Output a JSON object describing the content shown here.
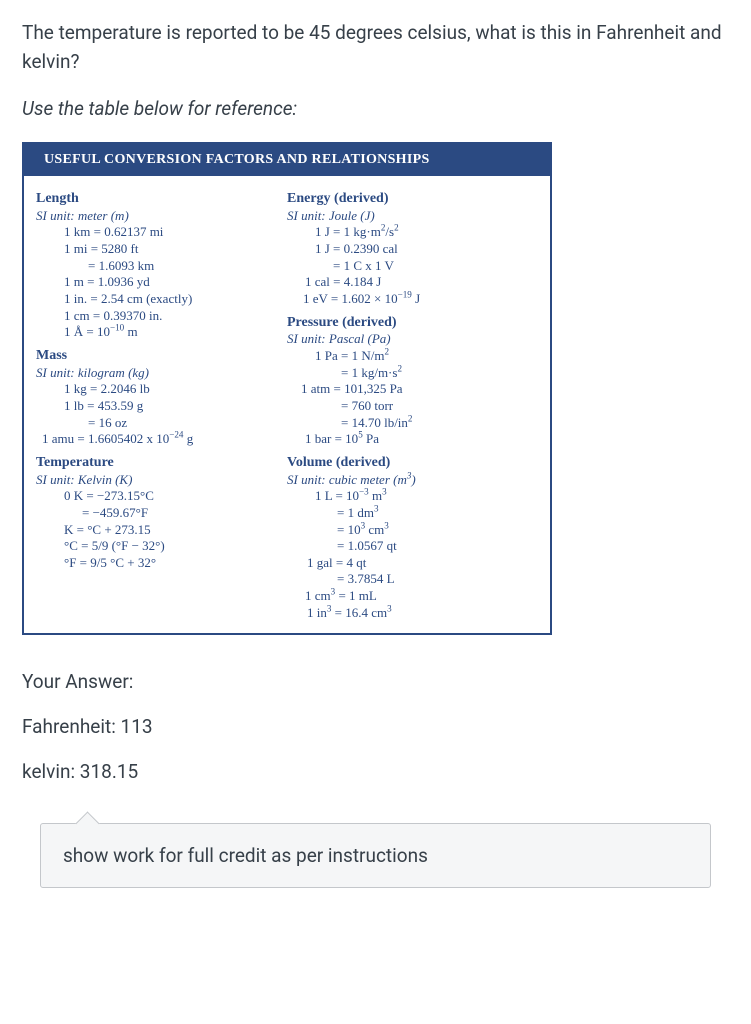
{
  "question": "The temperature is reported to be 45 degrees celsius, what is this in Fahrenheit and kelvin?",
  "prompt": "Use the table below for reference:",
  "table": {
    "header": "USEFUL CONVERSION FACTORS AND RELATIONSHIPS",
    "border_color": "#2b4a82",
    "header_bg": "#2b4a82",
    "header_fg": "#ffffff",
    "text_color": "#2b4a82",
    "left": {
      "length": {
        "title": "Length",
        "si": "SI unit: meter (m)",
        "lines": [
          "1 km = 0.62137 mi",
          "1 mi = 5280 ft",
          "= 1.6093 km",
          "1 m = 1.0936 yd",
          "1 in. = 2.54 cm (exactly)",
          "1 cm = 0.39370 in."
        ],
        "angstrom_html": "1 Å = 10<sup>−10</sup> m"
      },
      "mass": {
        "title": "Mass",
        "si": "SI unit: kilogram (kg)",
        "lines": [
          "1 kg = 2.2046 lb",
          "1 lb = 453.59 g",
          "= 16 oz"
        ],
        "amu_html": "1 amu = 1.6605402 x 10<sup>−24</sup> g"
      },
      "temperature": {
        "title": "Temperature",
        "si": "SI unit: Kelvin (K)",
        "lines": [
          "0 K = −273.15°C",
          "= −459.67°F",
          "K = °C + 273.15",
          "°C = 5/9 (°F − 32°)",
          "°F = 9/5 °C + 32°"
        ]
      }
    },
    "right": {
      "energy": {
        "title": "Energy (derived)",
        "si": "SI unit: Joule (J)",
        "lines_html": [
          "1 J = 1 kg·m<sup>2</sup>/s<sup>2</sup>",
          "1 J = 0.2390 cal",
          "= 1 C x 1 V",
          "1 cal = 4.184 J",
          "1 eV = 1.602 × 10<sup>−19</sup> J"
        ]
      },
      "pressure": {
        "title": "Pressure (derived)",
        "si": "SI unit: Pascal (Pa)",
        "lines_html": [
          "1 Pa = 1 N/m<sup>2</sup>",
          "= 1 kg/m·s<sup>2</sup>",
          "1 atm = 101,325 Pa",
          "= 760 torr",
          "= 14.70 lb/in<sup>2</sup>",
          "1 bar = 10<sup>5</sup> Pa"
        ]
      },
      "volume": {
        "title": "Volume (derived)",
        "si_html": "SI unit: cubic meter (m<sup>3</sup>)",
        "lines_html": [
          "1 L = 10<sup>−3</sup> m<sup>3</sup>",
          "= 1 dm<sup>3</sup>",
          "= 10<sup>3</sup> cm<sup>3</sup>",
          "= 1.0567 qt",
          "1 gal = 4 qt",
          "= 3.7854 L",
          "1 cm<sup>3</sup> = 1 mL",
          "1 in<sup>3</sup> = 16.4 cm<sup>3</sup>"
        ]
      }
    }
  },
  "answer": {
    "label": "Your Answer:",
    "fahrenheit_label": "Fahrenheit:",
    "fahrenheit_value": "113",
    "kelvin_label": "kelvin:",
    "kelvin_value": "318.15"
  },
  "comment": "show work for full credit as per instructions"
}
